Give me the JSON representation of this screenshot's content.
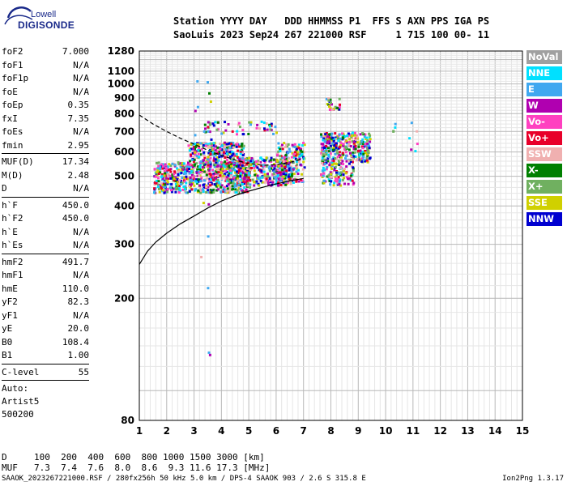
{
  "logo": {
    "top": "Lowell",
    "bottom": "DIGISONDE"
  },
  "header": {
    "line1": "Station YYYY DAY   DDD HHMMSS P1  FFS S AXN PPS IGA PS",
    "line2": "SaoLuis 2023 Sep24 267 221000 RSF     1 715 100 00- 11"
  },
  "params": {
    "group1": [
      {
        "name": "foF2",
        "value": "7.000"
      },
      {
        "name": "foF1",
        "value": "N/A"
      },
      {
        "name": "foF1p",
        "value": "N/A"
      },
      {
        "name": "foE",
        "value": "N/A"
      },
      {
        "name": "foEp",
        "value": "0.35"
      },
      {
        "name": "fxI",
        "value": "7.35"
      },
      {
        "name": "foEs",
        "value": "N/A"
      },
      {
        "name": "fmin",
        "value": "2.95"
      }
    ],
    "group2": [
      {
        "name": "MUF(D)",
        "value": "17.34"
      },
      {
        "name": "M(D)",
        "value": "2.48"
      },
      {
        "name": "D",
        "value": "N/A"
      }
    ],
    "group3": [
      {
        "name": "h`F",
        "value": "450.0"
      },
      {
        "name": "h`F2",
        "value": "450.0"
      },
      {
        "name": "h`E",
        "value": "N/A"
      },
      {
        "name": "h`Es",
        "value": "N/A"
      }
    ],
    "group4": [
      {
        "name": "hmF2",
        "value": "491.7"
      },
      {
        "name": "hmF1",
        "value": "N/A"
      },
      {
        "name": "hmE",
        "value": "110.0"
      },
      {
        "name": "yF2",
        "value": "82.3"
      },
      {
        "name": "yF1",
        "value": "N/A"
      },
      {
        "name": "yE",
        "value": "20.0"
      },
      {
        "name": "B0",
        "value": "108.4"
      },
      {
        "name": "B1",
        "value": "1.00"
      }
    ],
    "clevel": {
      "name": "C-level",
      "value": "55"
    },
    "auto": [
      "Auto:",
      "Artist5",
      "500200"
    ]
  },
  "legend": [
    {
      "label": "NoVal",
      "color": "#a0a0a0"
    },
    {
      "label": "NNE",
      "color": "#00e0ff"
    },
    {
      "label": "E",
      "color": "#40a8f0"
    },
    {
      "label": "W",
      "color": "#b000b0"
    },
    {
      "label": "Vo-",
      "color": "#ff40c0"
    },
    {
      "label": "Vo+",
      "color": "#e8002a"
    },
    {
      "label": "SSW",
      "color": "#f0b0b0"
    },
    {
      "label": "X-",
      "color": "#008000"
    },
    {
      "label": "X+",
      "color": "#70b060"
    },
    {
      "label": "SSE",
      "color": "#d0d000"
    },
    {
      "label": "NNW",
      "color": "#0000d0"
    }
  ],
  "chart_data": {
    "type": "scatter",
    "xlim": [
      1,
      15
    ],
    "ylim": [
      80,
      1280
    ],
    "xscale": "linear",
    "yscale": "log",
    "x_ticks": [
      1,
      2,
      3,
      4,
      5,
      6,
      7,
      8,
      9,
      10,
      11,
      12,
      13,
      14,
      15
    ],
    "y_ticks": [
      80,
      200,
      300,
      400,
      500,
      600,
      700,
      800,
      900,
      1000,
      1100,
      1280
    ],
    "grid": true,
    "profile_solid": [
      [
        1.0,
        258
      ],
      [
        1.3,
        285
      ],
      [
        1.6,
        305
      ],
      [
        2.0,
        326
      ],
      [
        2.5,
        350
      ],
      [
        3.0,
        371
      ],
      [
        3.5,
        394
      ],
      [
        4.0,
        415
      ],
      [
        4.5,
        433
      ],
      [
        5.0,
        447
      ],
      [
        5.5,
        460
      ],
      [
        6.0,
        472
      ],
      [
        6.5,
        483
      ],
      [
        7.0,
        492
      ]
    ],
    "trace_dashed": [
      [
        1.0,
        792
      ],
      [
        1.5,
        740
      ],
      [
        2.0,
        700
      ],
      [
        2.5,
        665
      ],
      [
        3.0,
        636
      ],
      [
        3.5,
        608
      ],
      [
        4.0,
        585
      ],
      [
        4.5,
        565
      ],
      [
        5.0,
        550
      ],
      [
        5.5,
        543
      ],
      [
        6.0,
        545
      ],
      [
        6.5,
        555
      ],
      [
        7.0,
        570
      ]
    ],
    "echo_regions": [
      {
        "x": [
          1.5,
          5.0
        ],
        "y": [
          445,
          560
        ],
        "n": 700
      },
      {
        "x": [
          2.8,
          4.8
        ],
        "y": [
          540,
          650
        ],
        "n": 320
      },
      {
        "x": [
          4.5,
          6.6
        ],
        "y": [
          470,
          580
        ],
        "n": 300
      },
      {
        "x": [
          6.0,
          7.0
        ],
        "y": [
          480,
          650
        ],
        "n": 160
      },
      {
        "x": [
          7.6,
          9.4
        ],
        "y": [
          560,
          700
        ],
        "n": 340
      },
      {
        "x": [
          7.6,
          8.8
        ],
        "y": [
          470,
          560
        ],
        "n": 120
      },
      {
        "x": [
          3.3,
          6.0
        ],
        "y": [
          690,
          760
        ],
        "n": 55
      },
      {
        "x": [
          7.8,
          8.3
        ],
        "y": [
          830,
          905
        ],
        "n": 25
      },
      {
        "x": [
          10.0,
          11.2
        ],
        "y": [
          580,
          830
        ],
        "n": 10
      },
      {
        "x": [
          2.7,
          3.6
        ],
        "y": [
          120,
          1060
        ],
        "n": 20
      }
    ]
  },
  "bottom": {
    "d_label": "D",
    "d_values": "100  200  400  600  800 1000 1500 3000 [km]",
    "muf_label": "MUF",
    "muf_values": "7.3  7.4  7.6  8.0  8.6  9.3 11.6 17.3 [MHz]"
  },
  "footer": {
    "left": "SAAOK_2023267221000.RSF / 280fx256h 50 kHz 5.0 km / DPS-4 SAAOK 903 / 2.6 S 315.8 E",
    "right": "Ion2Png 1.3.17"
  }
}
